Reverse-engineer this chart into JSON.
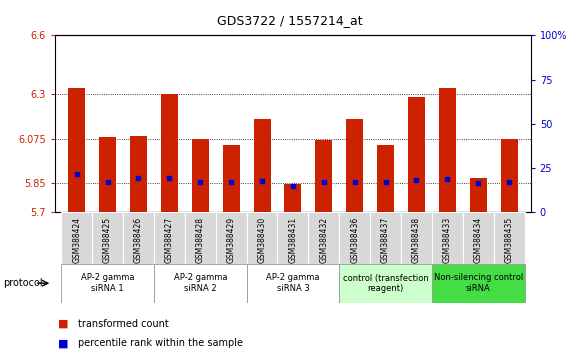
{
  "title": "GDS3722 / 1557214_at",
  "samples": [
    "GSM388424",
    "GSM388425",
    "GSM388426",
    "GSM388427",
    "GSM388428",
    "GSM388429",
    "GSM388430",
    "GSM388431",
    "GSM388432",
    "GSM388436",
    "GSM388437",
    "GSM388438",
    "GSM388433",
    "GSM388434",
    "GSM388435"
  ],
  "red_values": [
    6.33,
    6.085,
    6.09,
    6.3,
    6.075,
    6.045,
    6.175,
    5.845,
    6.07,
    6.175,
    6.045,
    6.285,
    6.33,
    5.875,
    6.075
  ],
  "blue_values": [
    5.895,
    5.855,
    5.875,
    5.875,
    5.855,
    5.855,
    5.86,
    5.835,
    5.855,
    5.855,
    5.855,
    5.865,
    5.87,
    5.85,
    5.855
  ],
  "ymin": 5.7,
  "ymax": 6.6,
  "yticks": [
    5.7,
    5.85,
    6.075,
    6.3,
    6.6
  ],
  "ytick_labels": [
    "5.7",
    "5.85",
    "6.075",
    "6.3",
    "6.6"
  ],
  "right_yticks": [
    0,
    25,
    50,
    75,
    100
  ],
  "right_ytick_labels": [
    "0",
    "25",
    "50",
    "75",
    "100%"
  ],
  "groups": [
    {
      "label": "AP-2 gamma\nsiRNA 1",
      "indices": [
        0,
        1,
        2
      ],
      "color": "#ffffff"
    },
    {
      "label": "AP-2 gamma\nsiRNA 2",
      "indices": [
        3,
        4,
        5
      ],
      "color": "#ffffff"
    },
    {
      "label": "AP-2 gamma\nsiRNA 3",
      "indices": [
        6,
        7,
        8
      ],
      "color": "#ffffff"
    },
    {
      "label": "control (transfection\nreagent)",
      "indices": [
        9,
        10,
        11
      ],
      "color": "#ccffcc"
    },
    {
      "label": "Non-silencing control\nsiRNA",
      "indices": [
        12,
        13,
        14
      ],
      "color": "#44dd44"
    }
  ],
  "bar_color": "#cc2200",
  "dot_color": "#0000cc",
  "bg_color": "#ffffff",
  "bar_width": 0.55,
  "legend_red": "transformed count",
  "legend_blue": "percentile rank within the sample",
  "protocol_label": "protocol",
  "grid_dotted_at": [
    5.85,
    6.075,
    6.3
  ],
  "sample_bg": "#d8d8d8",
  "title_fontsize": 9,
  "tick_fontsize": 7,
  "sample_fontsize": 5.5,
  "group_fontsize": 6,
  "legend_fontsize": 7
}
